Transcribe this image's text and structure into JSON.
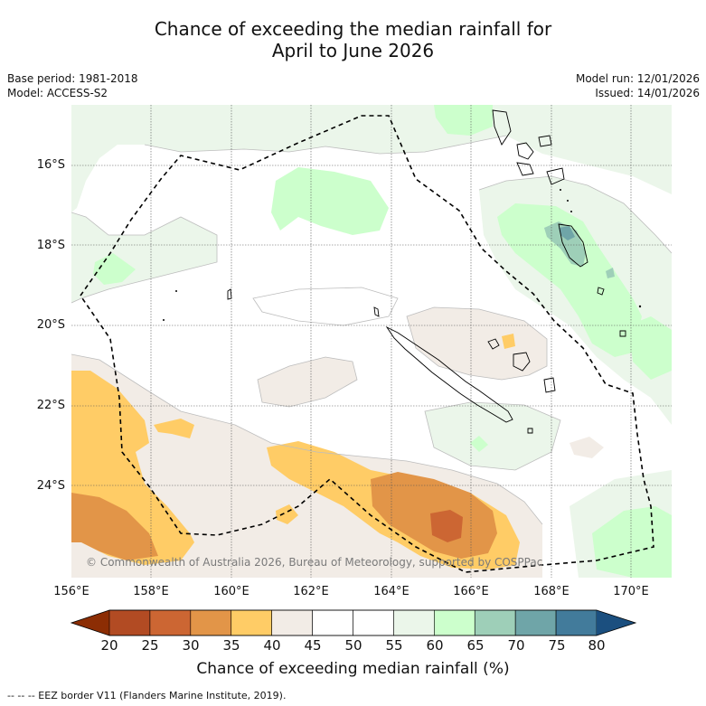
{
  "title_line1": "Chance of exceeding the median rainfall for",
  "title_line2": "April to June 2026",
  "base_period": "Base period: 1981-2018",
  "model": "Model: ACCESS-S2",
  "model_run": "Model run: 12/01/2026",
  "issued": "Issued: 14/01/2026",
  "copyright": "© Commonwealth of Australia 2026, Bureau of Meteorology, supported by COSPPac",
  "legend_text": "-- -- -- EEZ border V11 (Flanders Marine Institute, 2019).",
  "colors": {
    "c20": "#8c2d04",
    "c25": "#b24b23",
    "c30": "#cc6633",
    "c35": "#e29548",
    "c40": "#ffcc66",
    "c45": "#f2ece6",
    "c50": "#ffffff",
    "c55": "#ffffff",
    "c60": "#ebf6ea",
    "c65": "#ccffcc",
    "c70": "#9ecfb8",
    "c75": "#6fa5a8",
    "c80": "#427b9b",
    "c80plus": "#1b4f7f"
  },
  "chart_data": {
    "type": "heatmap",
    "title": "Chance of exceeding the median rainfall for April to June 2026",
    "colorbar_label": "Chance of exceeding median rainfall (%)",
    "colorbar_ticks": [
      "20",
      "25",
      "30",
      "35",
      "40",
      "45",
      "50",
      "55",
      "60",
      "65",
      "70",
      "75",
      "80"
    ],
    "x_ticks": [
      "156°E",
      "158°E",
      "160°E",
      "162°E",
      "164°E",
      "166°E",
      "168°E",
      "170°E"
    ],
    "y_ticks": [
      "16°S",
      "18°S",
      "20°S",
      "22°S",
      "24°S"
    ],
    "lon_range": [
      156,
      171
    ],
    "lat_range": [
      -26.3,
      -14.5
    ],
    "regions": [
      {
        "name": "dry band south-west of New Caledonia",
        "range_pct": "20-45"
      },
      {
        "name": "wet area near Vanuatu",
        "range_pct": "55-75"
      },
      {
        "name": "wet area north (Solomon Sea)",
        "range_pct": "55-65"
      },
      {
        "name": "near-median elsewhere",
        "range_pct": "45-55"
      }
    ]
  }
}
